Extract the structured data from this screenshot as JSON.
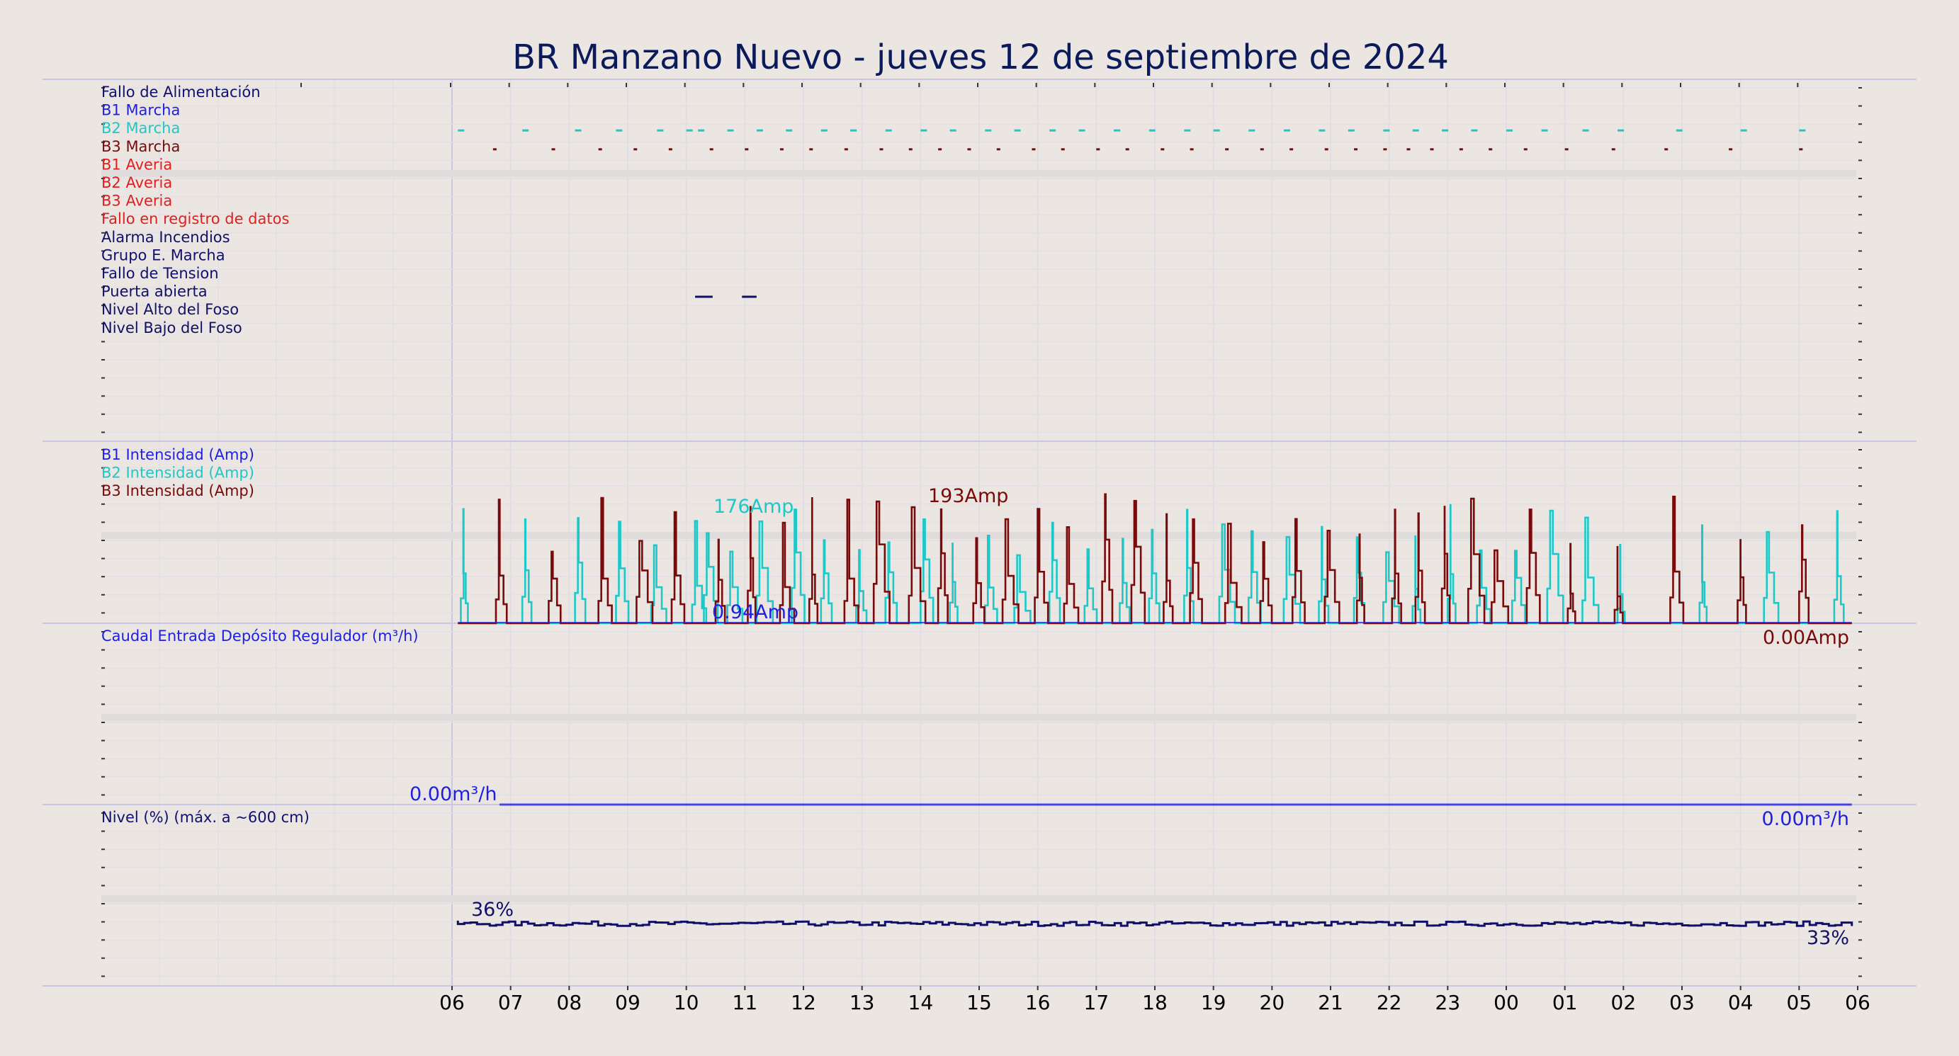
{
  "title": "BR Manzano Nuevo   -   jueves 12 de septiembre de 2024",
  "colors": {
    "navy": "#10106a",
    "blue": "#2020e0",
    "cyan": "#1ec8c8",
    "darkred": "#7a0a0a",
    "red": "#e02020",
    "grid": "#dcdce8",
    "bg": "#ebe6e1"
  },
  "chart_data": [
    {
      "type": "line",
      "panel": "digital-signals",
      "signals": [
        {
          "label": "Fallo de Alimentación",
          "color": "#10106a"
        },
        {
          "label": "B1 Marcha",
          "color": "#2020e0"
        },
        {
          "label": "B2 Marcha",
          "color": "#1ec8c8"
        },
        {
          "label": "B3 Marcha",
          "color": "#7a0a0a"
        },
        {
          "label": "B1 Averia",
          "color": "#e02020"
        },
        {
          "label": "B2 Averia",
          "color": "#e02020"
        },
        {
          "label": "B3 Averia",
          "color": "#e02020"
        },
        {
          "label": "Fallo en registro de datos",
          "color": "#e02020"
        },
        {
          "label": "Alarma Incendios",
          "color": "#10106a"
        },
        {
          "label": "Grupo E. Marcha",
          "color": "#10106a"
        },
        {
          "label": "Fallo de Tension",
          "color": "#10106a"
        },
        {
          "label": "Puerta abierta",
          "color": "#10106a"
        },
        {
          "label": "Nivel Alto del Foso",
          "color": "#10106a"
        },
        {
          "label": "Nivel Bajo del Foso",
          "color": "#10106a"
        }
      ],
      "b2_marcha_hours": [
        6.1,
        7.2,
        8.1,
        8.8,
        9.5,
        10.0,
        10.2,
        10.7,
        11.2,
        11.7,
        12.3,
        12.8,
        13.4,
        14.0,
        14.5,
        15.1,
        15.6,
        16.2,
        16.7,
        17.3,
        17.9,
        18.5,
        19.0,
        19.6,
        20.2,
        20.8,
        21.3,
        21.9,
        22.4,
        22.9,
        23.4,
        24.0,
        24.6,
        25.3,
        25.9,
        26.9,
        28.0,
        29.0
      ],
      "b3_marcha_hours": [
        6.7,
        7.7,
        8.5,
        9.1,
        9.7,
        10.4,
        11.0,
        11.6,
        12.1,
        12.7,
        13.3,
        13.8,
        14.3,
        14.8,
        15.3,
        15.9,
        16.4,
        17.0,
        17.5,
        18.1,
        18.6,
        19.2,
        19.8,
        20.3,
        20.9,
        21.4,
        21.9,
        22.3,
        22.7,
        23.2,
        23.7,
        24.3,
        25.0,
        25.8,
        26.7,
        27.8,
        29.0
      ],
      "puerta_abierta_hours": [
        [
          10.15,
          10.45
        ],
        [
          10.95,
          11.2
        ]
      ]
    },
    {
      "type": "line",
      "panel": "intensidad",
      "series": [
        {
          "name": "B1 Intensidad (Amp)",
          "color": "#2020e0"
        },
        {
          "name": "B2 Intensidad (Amp)",
          "color": "#1ec8c8"
        },
        {
          "name": "B3 Intensidad (Amp)",
          "color": "#7a0a0a"
        }
      ],
      "ylim": [
        0,
        200
      ],
      "b1_last": 0.94,
      "b2_peaks_hours": [
        6.15,
        7.2,
        8.1,
        8.8,
        9.4,
        10.1,
        10.3,
        10.7,
        11.2,
        11.8,
        12.3,
        12.9,
        13.4,
        14.0,
        14.5,
        15.1,
        15.6,
        16.2,
        16.8,
        17.4,
        17.9,
        18.5,
        19.1,
        19.6,
        20.2,
        20.8,
        21.4,
        21.9,
        22.4,
        23.0,
        23.5,
        24.1,
        24.7,
        25.3,
        25.9,
        27.3,
        28.4,
        29.6
      ],
      "b3_peaks_hours": [
        6.75,
        7.65,
        8.5,
        9.15,
        9.75,
        10.5,
        11.05,
        11.6,
        12.1,
        12.7,
        13.2,
        13.8,
        14.3,
        14.9,
        15.4,
        15.95,
        16.45,
        17.1,
        17.6,
        18.15,
        18.6,
        19.2,
        19.8,
        20.35,
        20.9,
        21.45,
        22.05,
        22.45,
        22.9,
        23.35,
        23.75,
        24.35,
        25.05,
        25.85,
        26.8,
        27.95,
        29.0
      ],
      "annotations": [
        {
          "text": "176Amp",
          "color": "#1ec8c8",
          "x_hour": 10.7,
          "y": 176
        },
        {
          "text": "193Amp",
          "color": "#7a0a0a",
          "x_hour": 14.6,
          "y": 193
        },
        {
          "text": "0.94Amp",
          "color": "#2020e0",
          "x_hour": 11.2,
          "y": 0.94
        },
        {
          "text": "0.00Amp",
          "color": "#7a0a0a",
          "x_hour": 29.9,
          "y": 0
        }
      ]
    },
    {
      "type": "line",
      "panel": "caudal",
      "series": [
        {
          "name": "Caudal Entrada Depósito Regulador (m³/h)",
          "color": "#2020e0",
          "value": 0.0
        }
      ],
      "annotations": [
        {
          "text": "0.00m³/h",
          "color": "#2020e0",
          "x_hour": 6.0
        },
        {
          "text": "0.00m³/h",
          "color": "#2020e0",
          "x_hour": 29.9
        }
      ]
    },
    {
      "type": "line",
      "panel": "nivel",
      "series": [
        {
          "name": "Nivel (%) (máx. a ~600 cm)",
          "color": "#10106a"
        }
      ],
      "ylim": [
        0,
        100
      ],
      "start_value": 36,
      "end_value": 33,
      "annotations": [
        {
          "text": "36%",
          "color": "#10106a",
          "x_hour": 6.8
        },
        {
          "text": "33%",
          "color": "#10106a",
          "x_hour": 29.9
        }
      ]
    }
  ],
  "x_axis": {
    "hour_start": 6,
    "hour_end": 30,
    "tick_labels": [
      "06",
      "07",
      "08",
      "09",
      "10",
      "11",
      "12",
      "13",
      "14",
      "15",
      "16",
      "17",
      "18",
      "19",
      "20",
      "21",
      "22",
      "23",
      "00",
      "01",
      "02",
      "03",
      "04",
      "05",
      "06"
    ]
  }
}
